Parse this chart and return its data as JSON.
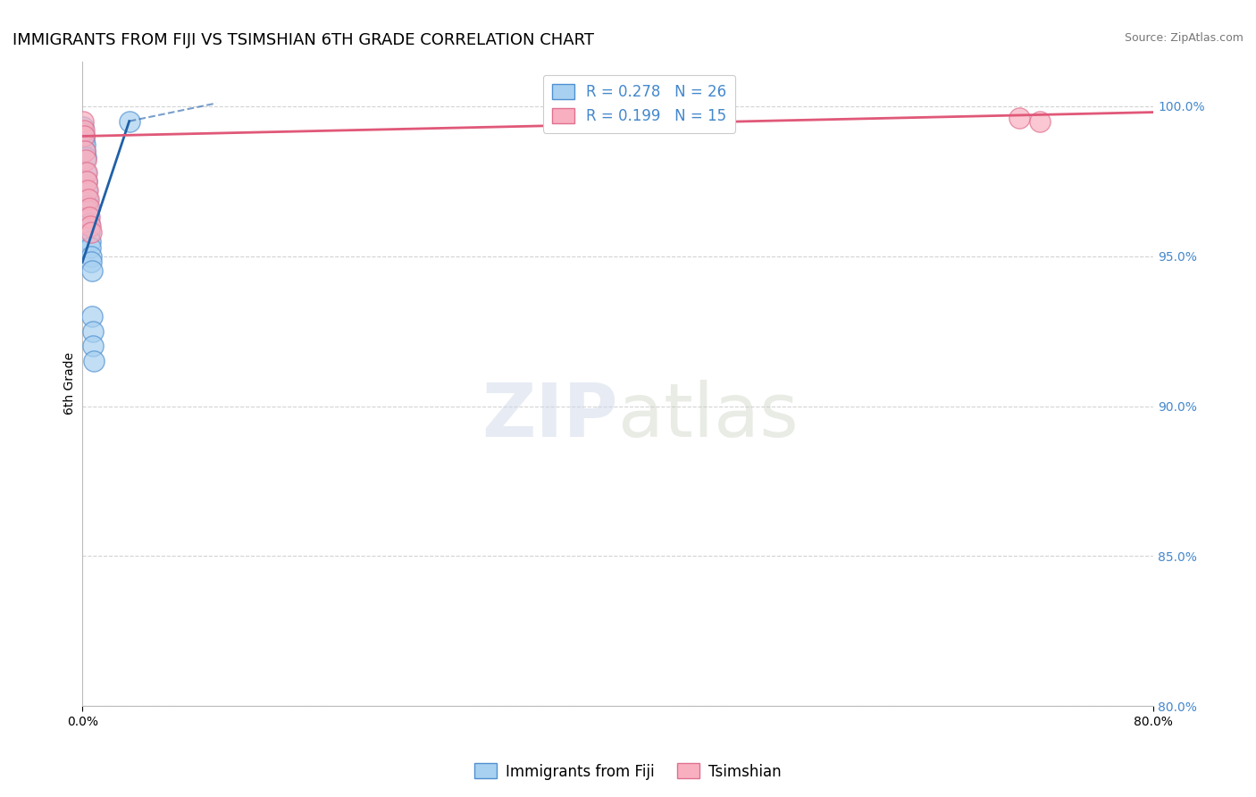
{
  "title": "IMMIGRANTS FROM FIJI VS TSIMSHIAN 6TH GRADE CORRELATION CHART",
  "source": "Source: ZipAtlas.com",
  "ylabel": "6th Grade",
  "xmin": 0.0,
  "xmax": 80.0,
  "ymin": 80.0,
  "ymax": 101.5,
  "yticks": [
    80.0,
    85.0,
    90.0,
    95.0,
    100.0
  ],
  "ytick_labels": [
    "80.0%",
    "85.0%",
    "90.0%",
    "95.0%",
    "100.0%"
  ],
  "blue_R": 0.278,
  "blue_N": 26,
  "pink_R": 0.199,
  "pink_N": 15,
  "blue_color": "#A8D0F0",
  "blue_edge_color": "#5090D0",
  "blue_line_color": "#2060A8",
  "pink_color": "#F8B0C0",
  "pink_edge_color": "#E07090",
  "pink_line_color": "#E05878",
  "legend_label_blue": "Immigrants from Fiji",
  "legend_label_pink": "Tsimshian",
  "watermark_zip": "ZIP",
  "watermark_atlas": "atlas",
  "grid_color": "#C8C8C8",
  "background_color": "#FFFFFF",
  "title_fontsize": 13,
  "axis_label_fontsize": 10,
  "tick_fontsize": 10,
  "legend_fontsize": 12,
  "right_tick_color": "#4488CC",
  "blue_scatter_x": [
    0.05,
    0.08,
    0.12,
    0.15,
    0.18,
    0.22,
    0.25,
    0.28,
    0.32,
    0.35,
    0.38,
    0.42,
    0.45,
    0.48,
    0.52,
    0.55,
    0.58,
    0.62,
    0.65,
    0.68,
    0.72,
    0.75,
    0.78,
    0.82,
    0.85,
    3.5
  ],
  "blue_scatter_y": [
    99.3,
    99.1,
    98.9,
    99.0,
    98.7,
    98.5,
    98.3,
    97.8,
    97.5,
    97.2,
    96.9,
    96.7,
    96.5,
    96.3,
    96.1,
    95.8,
    95.5,
    95.3,
    95.0,
    94.8,
    94.5,
    93.0,
    92.5,
    92.0,
    91.5,
    99.5
  ],
  "pink_scatter_x": [
    0.05,
    0.1,
    0.15,
    0.2,
    0.25,
    0.3,
    0.35,
    0.4,
    0.45,
    0.5,
    0.55,
    0.6,
    0.65,
    70.0,
    71.5
  ],
  "pink_scatter_y": [
    99.5,
    99.2,
    99.0,
    98.5,
    98.2,
    97.8,
    97.5,
    97.2,
    96.9,
    96.6,
    96.3,
    96.0,
    95.8,
    99.6,
    99.5
  ],
  "blue_trend_x0": 0.0,
  "blue_trend_y0": 94.8,
  "blue_trend_x1": 3.5,
  "blue_trend_y1": 99.5,
  "blue_dash_x0": 3.5,
  "blue_dash_y0": 99.5,
  "blue_dash_x1": 10.0,
  "blue_dash_y1": 100.1,
  "pink_trend_x0": 0.0,
  "pink_trend_y0": 99.0,
  "pink_trend_x1": 80.0,
  "pink_trend_y1": 99.8
}
